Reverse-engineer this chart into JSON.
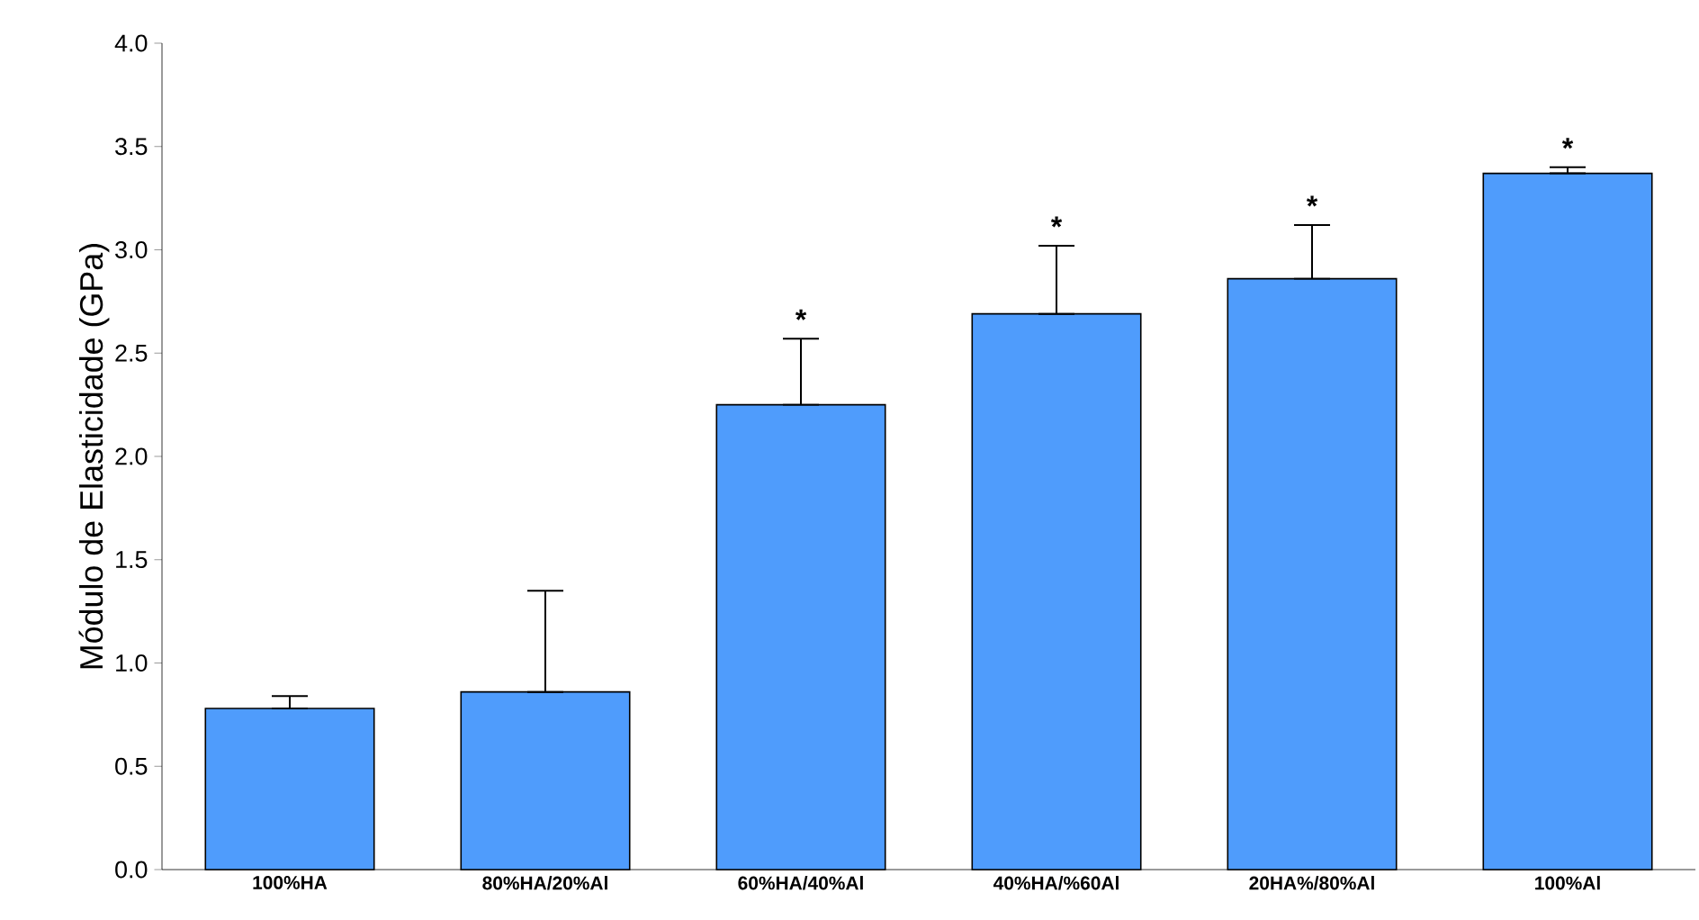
{
  "chart_data": {
    "type": "bar",
    "ylabel": "Módulo de Elasticidade (GPa)",
    "categories": [
      "100%HA",
      "80%HA/20%Al",
      "60%HA/40%Al",
      "40%HA/%60Al",
      "20HA%/80%Al",
      "100%Al"
    ],
    "values": [
      0.78,
      0.86,
      2.25,
      2.69,
      2.86,
      3.37
    ],
    "errors": [
      [
        0.78,
        0.84
      ],
      [
        0.86,
        1.35
      ],
      [
        2.25,
        2.57
      ],
      [
        2.69,
        3.02
      ],
      [
        2.86,
        3.12
      ],
      [
        3.37,
        3.4
      ]
    ],
    "color": "#4f9cfc",
    "ylim": [
      0,
      4.0
    ],
    "yticks": [
      {
        "value": 0,
        "label": "0.0"
      },
      {
        "value": 0.5,
        "label": "0.5"
      },
      {
        "value": 1,
        "label": "1.0"
      },
      {
        "value": 1.5,
        "label": "1.5"
      },
      {
        "value": 2,
        "label": "2.0"
      },
      {
        "value": 2.5,
        "label": "2.5"
      },
      {
        "value": 3,
        "label": "3.0"
      },
      {
        "value": 3.5,
        "label": "3.5"
      },
      {
        "value": 4,
        "label": "4.0"
      }
    ],
    "annotations": [
      "*",
      "*",
      "*",
      "*"
    ]
  }
}
